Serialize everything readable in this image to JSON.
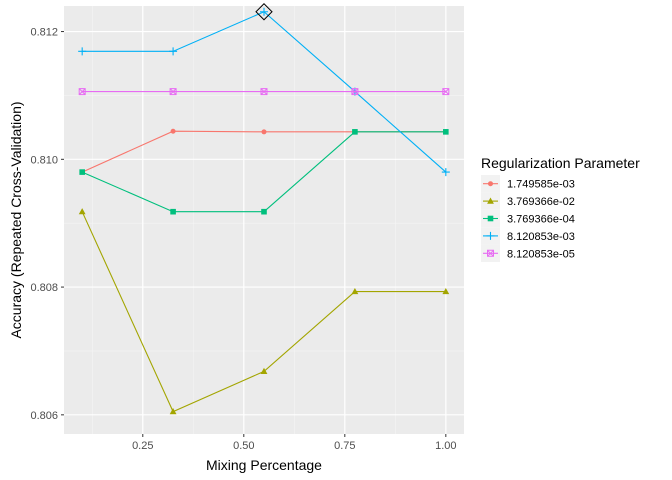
{
  "chart_data": {
    "type": "line",
    "title": "",
    "xlabel": "Mixing Percentage",
    "ylabel": "Accuracy (Repeated Cross-Validation)",
    "x": [
      0.1,
      0.325,
      0.55,
      0.775,
      1.0
    ],
    "xticks": [
      "0.25",
      "0.50",
      "0.75",
      "1.00"
    ],
    "xtick_values": [
      0.25,
      0.5,
      0.75,
      1.0
    ],
    "yticks": [
      "0.806",
      "0.808",
      "0.810",
      "0.812"
    ],
    "ytick_values": [
      0.806,
      0.808,
      0.81,
      0.812
    ],
    "xlim": [
      0.055,
      1.045
    ],
    "ylim": [
      0.8057,
      0.8124
    ],
    "grid": true,
    "legend": {
      "title": "Regularization Parameter",
      "position": "right"
    },
    "series": [
      {
        "name": "1.749585e-03",
        "color": "#F8766D",
        "marker": "circle",
        "values": [
          0.8098,
          0.81044,
          0.81043,
          0.81043,
          0.81043
        ]
      },
      {
        "name": "3.769366e-02",
        "color": "#A3A500",
        "marker": "triangle",
        "values": [
          0.80918,
          0.80605,
          0.80668,
          0.80793,
          0.80793
        ]
      },
      {
        "name": "3.769366e-04",
        "color": "#00BF7D",
        "marker": "square",
        "values": [
          0.8098,
          0.80918,
          0.80918,
          0.81043,
          0.81043
        ]
      },
      {
        "name": "8.120853e-03",
        "color": "#00B0F6",
        "marker": "plus",
        "values": [
          0.81169,
          0.81169,
          0.81231,
          0.81106,
          0.8098
        ]
      },
      {
        "name": "8.120853e-05",
        "color": "#E76BF3",
        "marker": "boxx",
        "values": [
          0.81106,
          0.81106,
          0.81106,
          0.81106,
          0.81106
        ]
      }
    ],
    "highlight": {
      "x": 0.55,
      "y": 0.81231,
      "marker": "diamond"
    }
  }
}
